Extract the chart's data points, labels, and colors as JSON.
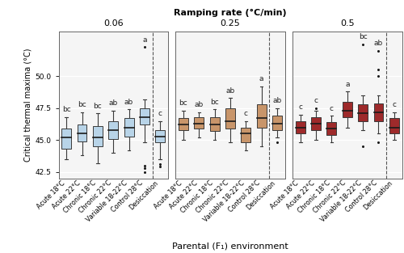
{
  "title": "Ramping rate (°C/min)",
  "xlabel": "Parental (F₁) environment",
  "ylabel": "Critical thermal maxima (°C)",
  "panels": [
    "0.06",
    "0.25",
    "0.5"
  ],
  "categories": [
    "Acute 18°C",
    "Acute 22°C",
    "Chronic 18°C",
    "Chronic 22°C",
    "Variable 18-22°C",
    "Control 28°C",
    "Desiccation"
  ],
  "ylim": [
    42.0,
    53.5
  ],
  "yticks": [
    42.5,
    45.0,
    47.5,
    50.0
  ],
  "colors": {
    "0.06": "#b8d4e8",
    "0.25": "#c8956a",
    "0.5": "#9e2a2b"
  },
  "box_data": {
    "0.06": {
      "Acute 18°C": {
        "q1": 44.3,
        "median": 45.2,
        "q3": 45.9,
        "whislo": 43.5,
        "whishi": 46.8,
        "fliers_high": [],
        "fliers_low": []
      },
      "Acute 22°C": {
        "q1": 44.9,
        "median": 45.5,
        "q3": 46.2,
        "whislo": 43.8,
        "whishi": 47.2,
        "fliers_high": [],
        "fliers_low": []
      },
      "Chronic 18°C": {
        "q1": 44.5,
        "median": 45.2,
        "q3": 46.1,
        "whislo": 43.2,
        "whishi": 47.1,
        "fliers_high": [],
        "fliers_low": []
      },
      "Chronic 22°C": {
        "q1": 45.1,
        "median": 45.8,
        "q3": 46.5,
        "whislo": 44.0,
        "whishi": 47.3,
        "fliers_high": [],
        "fliers_low": []
      },
      "Variable 18-22°C": {
        "q1": 45.3,
        "median": 46.0,
        "q3": 46.7,
        "whislo": 44.2,
        "whishi": 47.4,
        "fliers_high": [],
        "fliers_low": []
      },
      "Control 28°C": {
        "q1": 46.2,
        "median": 46.8,
        "q3": 47.5,
        "whislo": 44.8,
        "whishi": 48.2,
        "fliers_high": [
          52.3
        ],
        "fliers_low": [
          43.0,
          42.8,
          42.5
        ]
      },
      "Desiccation": {
        "q1": 44.8,
        "median": 45.3,
        "q3": 45.8,
        "whislo": 43.5,
        "whishi": 46.5,
        "fliers_high": [],
        "fliers_low": [
          43.1,
          42.9
        ]
      }
    },
    "0.25": {
      "Acute 18°C": {
        "q1": 45.8,
        "median": 46.2,
        "q3": 46.7,
        "whislo": 45.0,
        "whishi": 47.3,
        "fliers_high": [],
        "fliers_low": []
      },
      "Acute 22°C": {
        "q1": 45.9,
        "median": 46.3,
        "q3": 46.8,
        "whislo": 45.2,
        "whishi": 47.2,
        "fliers_high": [],
        "fliers_low": []
      },
      "Chronic 18°C": {
        "q1": 45.7,
        "median": 46.2,
        "q3": 46.8,
        "whislo": 45.0,
        "whishi": 47.4,
        "fliers_high": [],
        "fliers_low": []
      },
      "Chronic 22°C": {
        "q1": 45.9,
        "median": 46.5,
        "q3": 47.5,
        "whislo": 44.8,
        "whishi": 48.3,
        "fliers_high": [],
        "fliers_low": []
      },
      "Variable 18-22°C": {
        "q1": 44.8,
        "median": 45.5,
        "q3": 46.0,
        "whislo": 44.2,
        "whishi": 46.5,
        "fliers_high": [],
        "fliers_low": []
      },
      "Control 28°C": {
        "q1": 46.0,
        "median": 46.7,
        "q3": 47.8,
        "whislo": 44.5,
        "whishi": 49.2,
        "fliers_high": [],
        "fliers_low": []
      },
      "Desiccation": {
        "q1": 45.8,
        "median": 46.3,
        "q3": 46.9,
        "whislo": 45.2,
        "whishi": 47.5,
        "fliers_high": [],
        "fliers_low": [
          44.8
        ]
      }
    },
    "0.5": {
      "Acute 18°C": {
        "q1": 45.5,
        "median": 46.0,
        "q3": 46.5,
        "whislo": 44.8,
        "whishi": 47.0,
        "fliers_high": [],
        "fliers_low": []
      },
      "Acute 22°C": {
        "q1": 45.8,
        "median": 46.3,
        "q3": 46.8,
        "whislo": 45.0,
        "whishi": 47.3,
        "fliers_high": [
          47.5
        ],
        "fliers_low": []
      },
      "Chronic 18°C": {
        "q1": 45.4,
        "median": 45.9,
        "q3": 46.4,
        "whislo": 44.8,
        "whishi": 46.9,
        "fliers_high": [],
        "fliers_low": []
      },
      "Chronic 22°C": {
        "q1": 46.8,
        "median": 47.3,
        "q3": 48.0,
        "whislo": 46.0,
        "whishi": 48.8,
        "fliers_high": [],
        "fliers_low": []
      },
      "Variable 18-22°C": {
        "q1": 46.5,
        "median": 47.1,
        "q3": 47.8,
        "whislo": 45.8,
        "whishi": 48.5,
        "fliers_high": [
          52.5
        ],
        "fliers_low": [
          44.5
        ]
      },
      "Control 28°C": {
        "q1": 46.5,
        "median": 47.2,
        "q3": 47.9,
        "whislo": 45.5,
        "whishi": 48.5,
        "fliers_high": [
          52.0,
          50.5,
          50.0
        ],
        "fliers_low": [
          44.8
        ]
      },
      "Desiccation": {
        "q1": 45.5,
        "median": 46.0,
        "q3": 46.7,
        "whislo": 45.0,
        "whishi": 47.2,
        "fliers_high": [],
        "fliers_low": []
      }
    }
  },
  "annotations": {
    "0.06": [
      "bc",
      "bc",
      "bc",
      "ab",
      "ab",
      "a",
      "c"
    ],
    "0.25": [
      "bc",
      "ab",
      "bc",
      "ab",
      "c",
      "a",
      "ab"
    ],
    "0.5": [
      "c",
      "c",
      "c",
      "a",
      "bc",
      "ab",
      "c"
    ]
  },
  "panel_bg": "#f5f5f5",
  "grid_color": "#ffffff",
  "box_edge_color": "#3a3a3a",
  "median_color": "#1a1a1a",
  "whisker_color": "#3a3a3a",
  "flier_color": "#1a1a1a"
}
